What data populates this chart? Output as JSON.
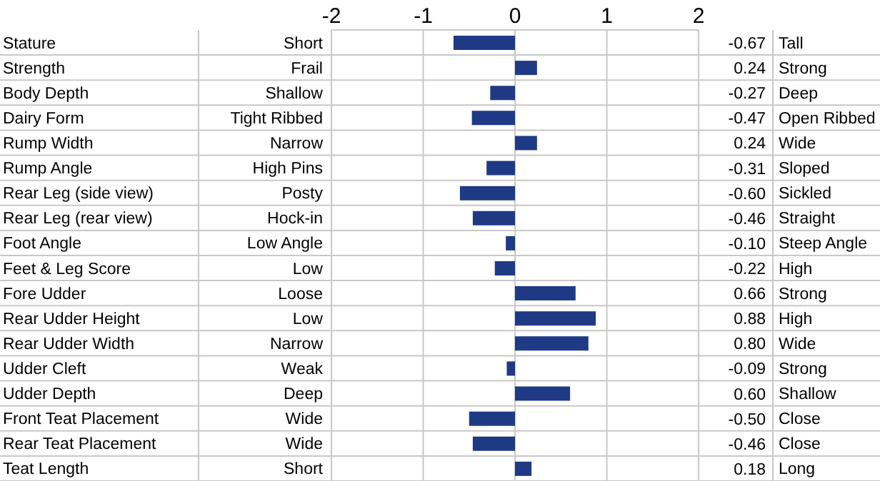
{
  "chart_data": {
    "type": "bar",
    "orientation": "horizontal",
    "categories": [
      "Stature",
      "Strength",
      "Body Depth",
      "Dairy Form",
      "Rump Width",
      "Rump Angle",
      "Rear Leg (side view)",
      "Rear Leg (rear view)",
      "Foot Angle",
      "Feet & Leg Score",
      "Fore Udder",
      "Rear Udder Height",
      "Rear Udder Width",
      "Udder Cleft",
      "Udder Depth",
      "Front Teat Placement",
      "Rear Teat Placement",
      "Teat Length"
    ],
    "values": [
      -0.67,
      0.24,
      -0.27,
      -0.47,
      0.24,
      -0.31,
      -0.6,
      -0.46,
      -0.1,
      -0.22,
      0.66,
      0.88,
      0.8,
      -0.09,
      0.6,
      -0.5,
      -0.46,
      0.18
    ],
    "value_labels": [
      "-0.67",
      "0.24",
      "-0.27",
      "-0.47",
      "0.24",
      "-0.31",
      "-0.60",
      "-0.46",
      "-0.10",
      "-0.22",
      "0.66",
      "0.88",
      "0.80",
      "-0.09",
      "0.60",
      "-0.50",
      "-0.46",
      "0.18"
    ],
    "color": "#1f3a85",
    "x2lim": [
      -2,
      2
    ],
    "x2ticks": [
      -2,
      -1,
      0,
      1,
      2
    ],
    "grid": true,
    "annotations": [
      "Short",
      "Frail",
      "Shallow",
      "Tight Ribbed",
      "Narrow",
      "High Pins",
      "Posty",
      "Hock-in",
      "Low Angle",
      "Low",
      "Loose",
      "Low",
      "Narrow",
      "Weak",
      "Deep",
      "Wide",
      "Wide",
      "Short",
      "Tall",
      "Strong",
      "Deep",
      "Open Ribbed",
      "Wide",
      "Sloped",
      "Sickled",
      "Straight",
      "Steep Angle",
      "High",
      "Strong",
      "High",
      "Wide",
      "Strong",
      "Shallow",
      "Close",
      "Close",
      "Long"
    ]
  }
}
